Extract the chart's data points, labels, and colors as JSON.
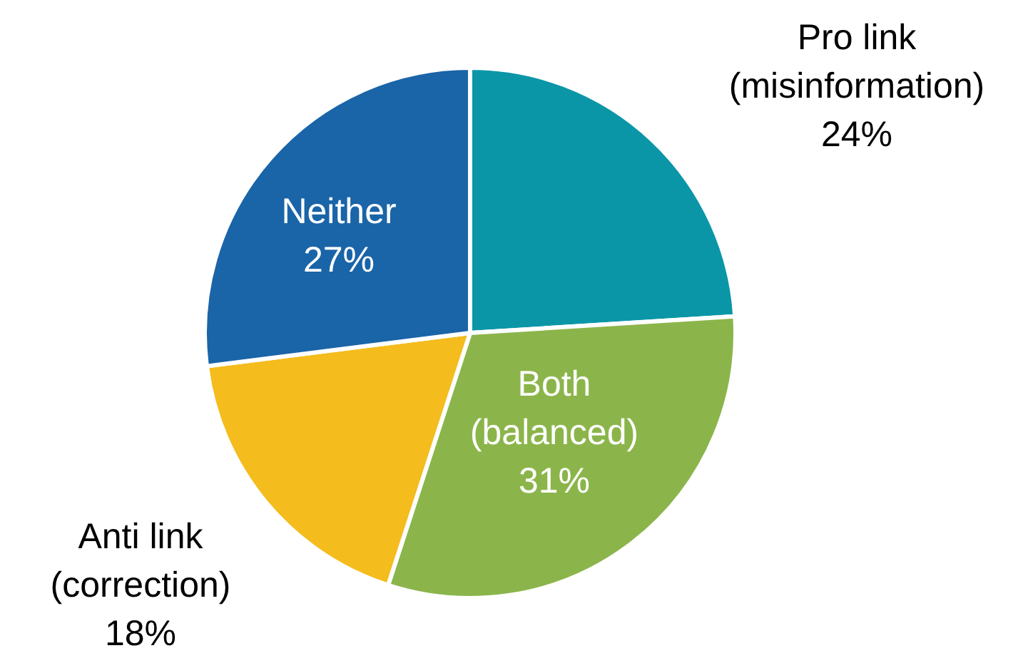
{
  "chart_data": {
    "type": "pie",
    "categories": [
      "Pro link\n(misinformation)",
      "Both\n(balanced)",
      "Anti link\n(correction)",
      "Neither"
    ],
    "values": [
      24,
      31,
      18,
      27
    ],
    "colors": [
      "#0b96a8",
      "#8bb54a",
      "#f4bc1c",
      "#1a64a8"
    ],
    "value_labels": [
      "24%",
      "31%",
      "18%",
      "27%"
    ]
  }
}
